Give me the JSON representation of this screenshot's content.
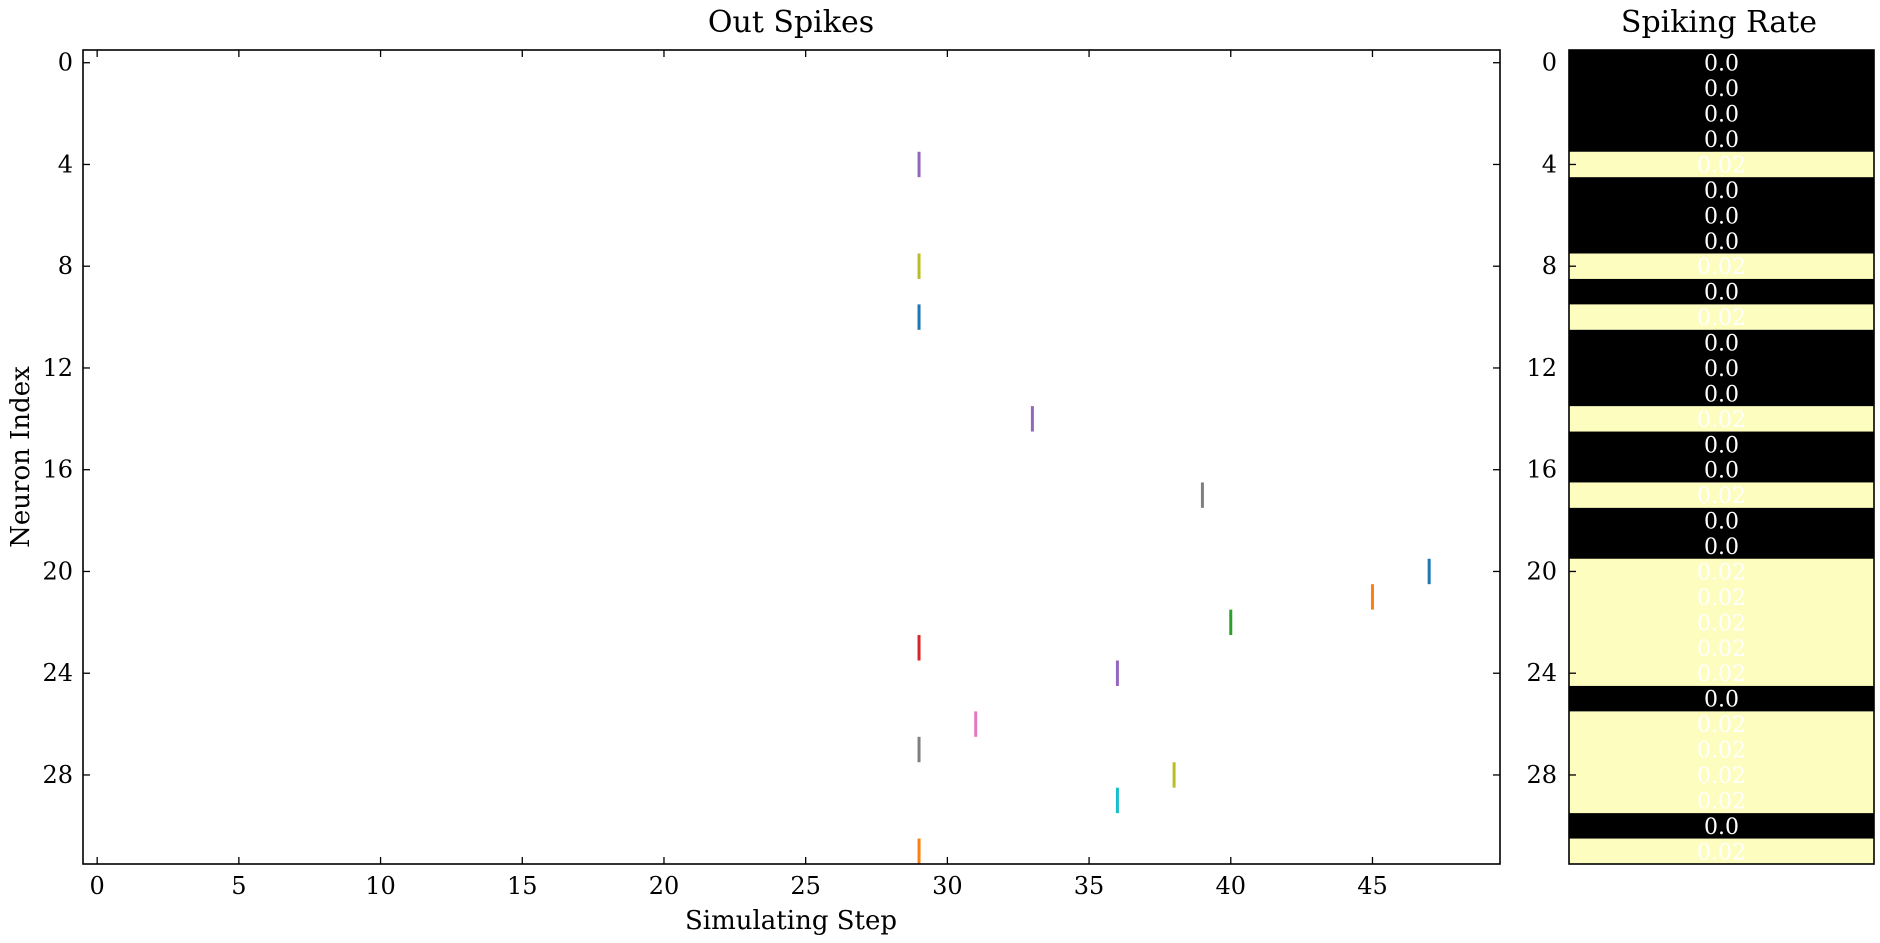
{
  "chart_data": [
    {
      "type": "scatter",
      "title": "Out Spikes",
      "xlabel": "Simulating Step",
      "ylabel": "Neuron Index",
      "xlim": [
        -0.5,
        49.5
      ],
      "ylim": [
        31.5,
        -0.5
      ],
      "xticks": [
        0,
        5,
        10,
        15,
        20,
        25,
        30,
        35,
        40,
        45
      ],
      "yticks": [
        0,
        4,
        8,
        12,
        16,
        20,
        24,
        28
      ],
      "marker": "vertical-line",
      "grid": false,
      "series": [
        {
          "points": [
            {
              "x": 29,
              "y": 4
            }
          ],
          "color": "#9467bd"
        },
        {
          "points": [
            {
              "x": 29,
              "y": 8
            }
          ],
          "color": "#bcbd22"
        },
        {
          "points": [
            {
              "x": 29,
              "y": 10
            }
          ],
          "color": "#1f77b4"
        },
        {
          "points": [
            {
              "x": 33,
              "y": 14
            }
          ],
          "color": "#9467bd"
        },
        {
          "points": [
            {
              "x": 39,
              "y": 17
            }
          ],
          "color": "#7f7f7f"
        },
        {
          "points": [
            {
              "x": 47,
              "y": 20
            }
          ],
          "color": "#1f77b4"
        },
        {
          "points": [
            {
              "x": 45,
              "y": 21
            }
          ],
          "color": "#ff7f0e"
        },
        {
          "points": [
            {
              "x": 40,
              "y": 22
            }
          ],
          "color": "#2ca02c"
        },
        {
          "points": [
            {
              "x": 29,
              "y": 23
            }
          ],
          "color": "#d62728"
        },
        {
          "points": [
            {
              "x": 36,
              "y": 24
            }
          ],
          "color": "#9467bd"
        },
        {
          "points": [
            {
              "x": 31,
              "y": 26
            }
          ],
          "color": "#e377c2"
        },
        {
          "points": [
            {
              "x": 29,
              "y": 27
            }
          ],
          "color": "#7f7f7f"
        },
        {
          "points": [
            {
              "x": 38,
              "y": 28
            }
          ],
          "color": "#bcbd22"
        },
        {
          "points": [
            {
              "x": 36,
              "y": 29
            }
          ],
          "color": "#17becf"
        },
        {
          "points": [
            {
              "x": 29,
              "y": 31
            }
          ],
          "color": "#ff7f0e"
        }
      ]
    },
    {
      "type": "heatmap",
      "title": "Spiking Rate",
      "yticks": [
        0,
        4,
        8,
        12,
        16,
        20,
        24,
        28
      ],
      "ylim": [
        31.5,
        -0.5
      ],
      "values": [
        0.0,
        0.0,
        0.0,
        0.0,
        0.02,
        0.0,
        0.0,
        0.0,
        0.02,
        0.0,
        0.02,
        0.0,
        0.0,
        0.0,
        0.02,
        0.0,
        0.0,
        0.02,
        0.0,
        0.0,
        0.02,
        0.02,
        0.02,
        0.02,
        0.02,
        0.0,
        0.02,
        0.02,
        0.02,
        0.02,
        0.0,
        0.02
      ],
      "labels": [
        "0.0",
        "0.0",
        "0.0",
        "0.0",
        "0.02",
        "0.0",
        "0.0",
        "0.0",
        "0.02",
        "0.0",
        "0.02",
        "0.0",
        "0.0",
        "0.0",
        "0.02",
        "0.0",
        "0.0",
        "0.02",
        "0.0",
        "0.0",
        "0.02",
        "0.02",
        "0.02",
        "0.02",
        "0.02",
        "0.0",
        "0.02",
        "0.02",
        "0.02",
        "0.02",
        "0.0",
        "0.02"
      ],
      "colors": {
        "low": "#000000",
        "high": "#fcfdbf"
      },
      "label_color": "#ffffff"
    }
  ]
}
